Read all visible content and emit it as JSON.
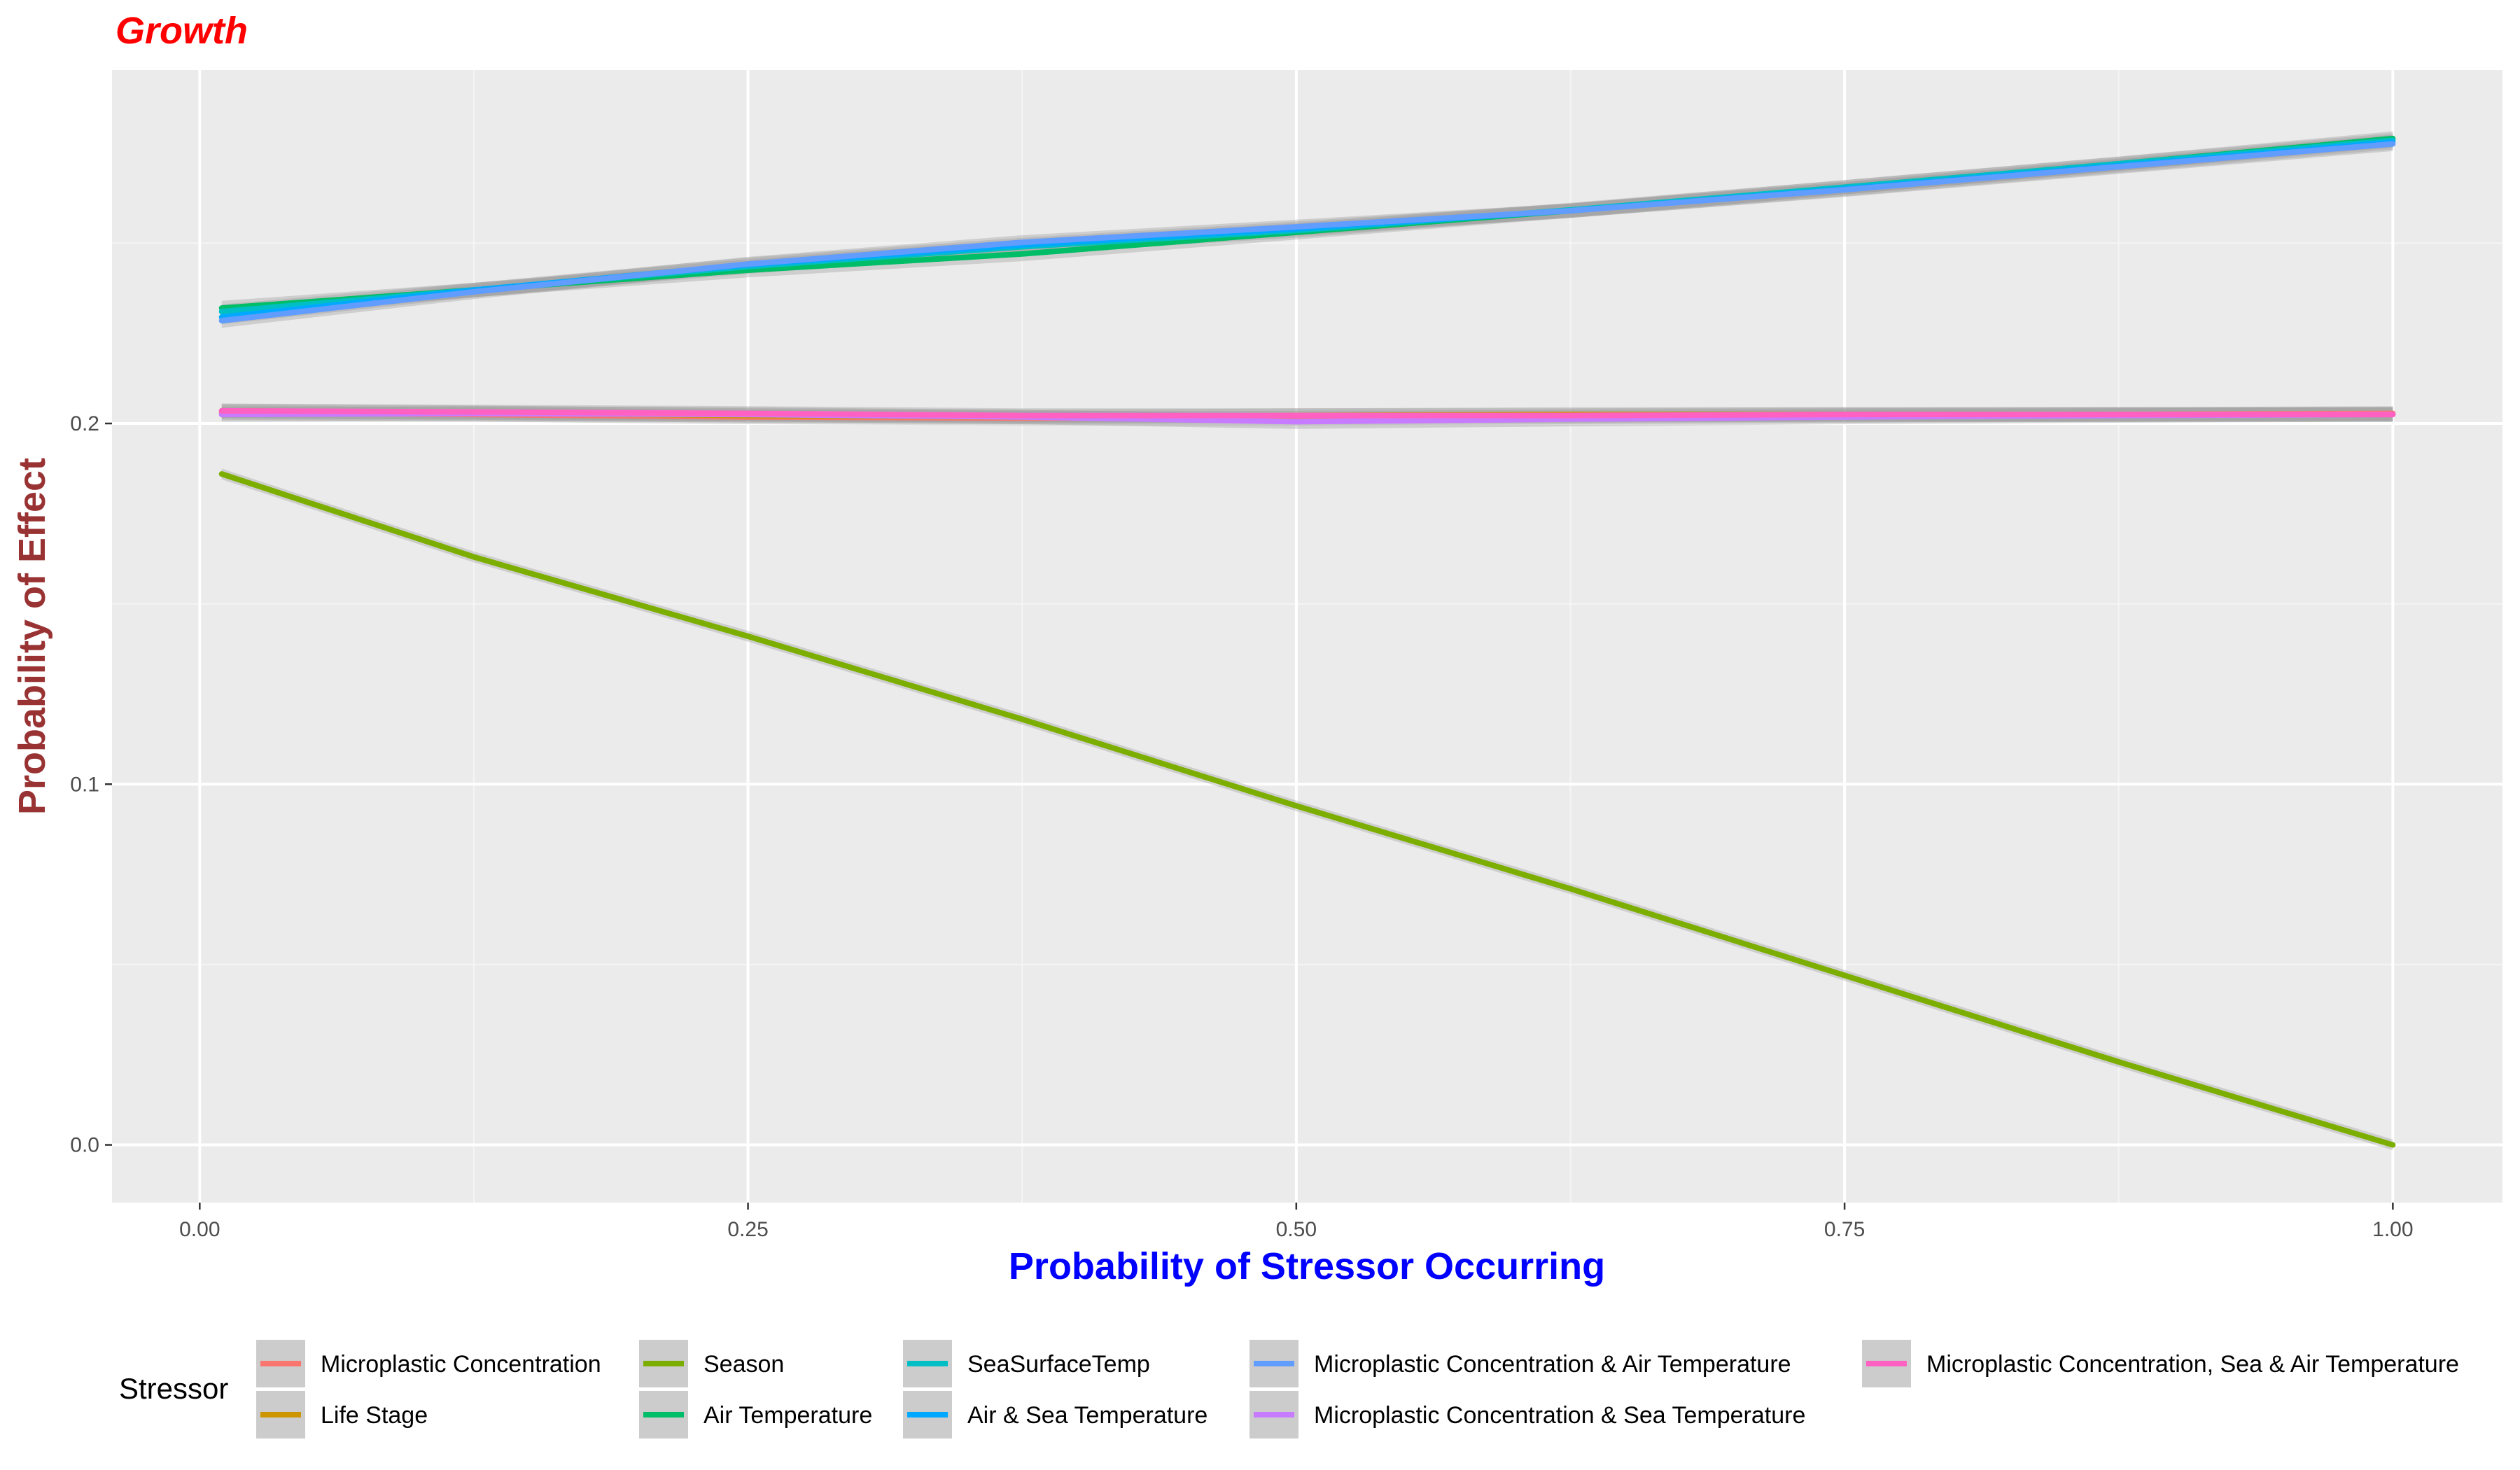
{
  "chart_data": {
    "type": "line",
    "title": "Growth",
    "xlabel": "Probability of Stressor Occurring",
    "ylabel": "Probability of Effect",
    "xlim": [
      -0.04,
      1.05
    ],
    "ylim": [
      -0.016,
      0.298
    ],
    "x_ticks": [
      0.0,
      0.25,
      0.5,
      0.75,
      1.0
    ],
    "x_tick_labels": [
      "0.00",
      "0.25",
      "0.50",
      "0.75",
      "1.00"
    ],
    "y_ticks": [
      0.0,
      0.1,
      0.2
    ],
    "y_tick_labels": [
      "0.0",
      "0.1",
      "0.2"
    ],
    "grid": true,
    "confidence_band": true,
    "legend": {
      "title": "Stressor",
      "position": "bottom"
    },
    "x": [
      0.01,
      0.125,
      0.25,
      0.375,
      0.5,
      0.625,
      0.75,
      0.875,
      1.0
    ],
    "series": [
      {
        "name": "Microplastic Concentration",
        "color": "#F8766D",
        "band": 0.002,
        "values": [
          0.203,
          0.2025,
          0.2018,
          0.2015,
          0.2015,
          0.2018,
          0.2022,
          0.2025,
          0.2028
        ]
      },
      {
        "name": "Life Stage",
        "color": "#CD9600",
        "band": 0.002,
        "values": [
          0.2035,
          0.203,
          0.2022,
          0.2018,
          0.2022,
          0.2025,
          0.2025,
          0.2025,
          0.2025
        ]
      },
      {
        "name": "Season",
        "color": "#7CAE00",
        "band": 0.0015,
        "values": [
          0.186,
          0.163,
          0.141,
          0.118,
          0.094,
          0.071,
          0.047,
          0.023,
          0.0
        ]
      },
      {
        "name": "Air Temperature",
        "color": "#00BE67",
        "band": 0.002,
        "values": [
          0.232,
          0.237,
          0.2425,
          0.247,
          0.253,
          0.259,
          0.2655,
          0.272,
          0.279
        ]
      },
      {
        "name": "SeaSurfaceTemp",
        "color": "#00BFC4",
        "band": 0.002,
        "values": [
          0.231,
          0.237,
          0.2435,
          0.249,
          0.2535,
          0.2592,
          0.2655,
          0.272,
          0.2785
        ]
      },
      {
        "name": "Air & Sea Temperature",
        "color": "#00A9FF",
        "band": 0.002,
        "values": [
          0.2295,
          0.237,
          0.244,
          0.2495,
          0.254,
          0.259,
          0.265,
          0.2715,
          0.278
        ]
      },
      {
        "name": "Microplastic Concentration & Air Temperature",
        "color": "#619CFF",
        "band": 0.002,
        "values": [
          0.2285,
          0.2365,
          0.2442,
          0.2502,
          0.2545,
          0.259,
          0.2648,
          0.2712,
          0.2775
        ]
      },
      {
        "name": "Microplastic Concentration & Sea Temperature",
        "color": "#C77CFF",
        "band": 0.002,
        "values": [
          0.2025,
          0.2028,
          0.2025,
          0.2018,
          0.2005,
          0.2012,
          0.2018,
          0.2022,
          0.2025
        ]
      },
      {
        "name": "Microplastic Concentration, Sea & Air Temperature",
        "color": "#FF61C3",
        "band": 0.002,
        "values": [
          0.2035,
          0.2032,
          0.2028,
          0.2022,
          0.2022,
          0.2022,
          0.2025,
          0.2025,
          0.2025
        ]
      }
    ]
  },
  "colors": {
    "panel_background": "#EBEBEB",
    "grid_major": "#FFFFFF",
    "grid_minor": "#F5F5F5",
    "band_fill": "#999999",
    "title_color": "#FF0000",
    "xlabel_color": "#0000FF",
    "ylabel_color": "#993333"
  }
}
